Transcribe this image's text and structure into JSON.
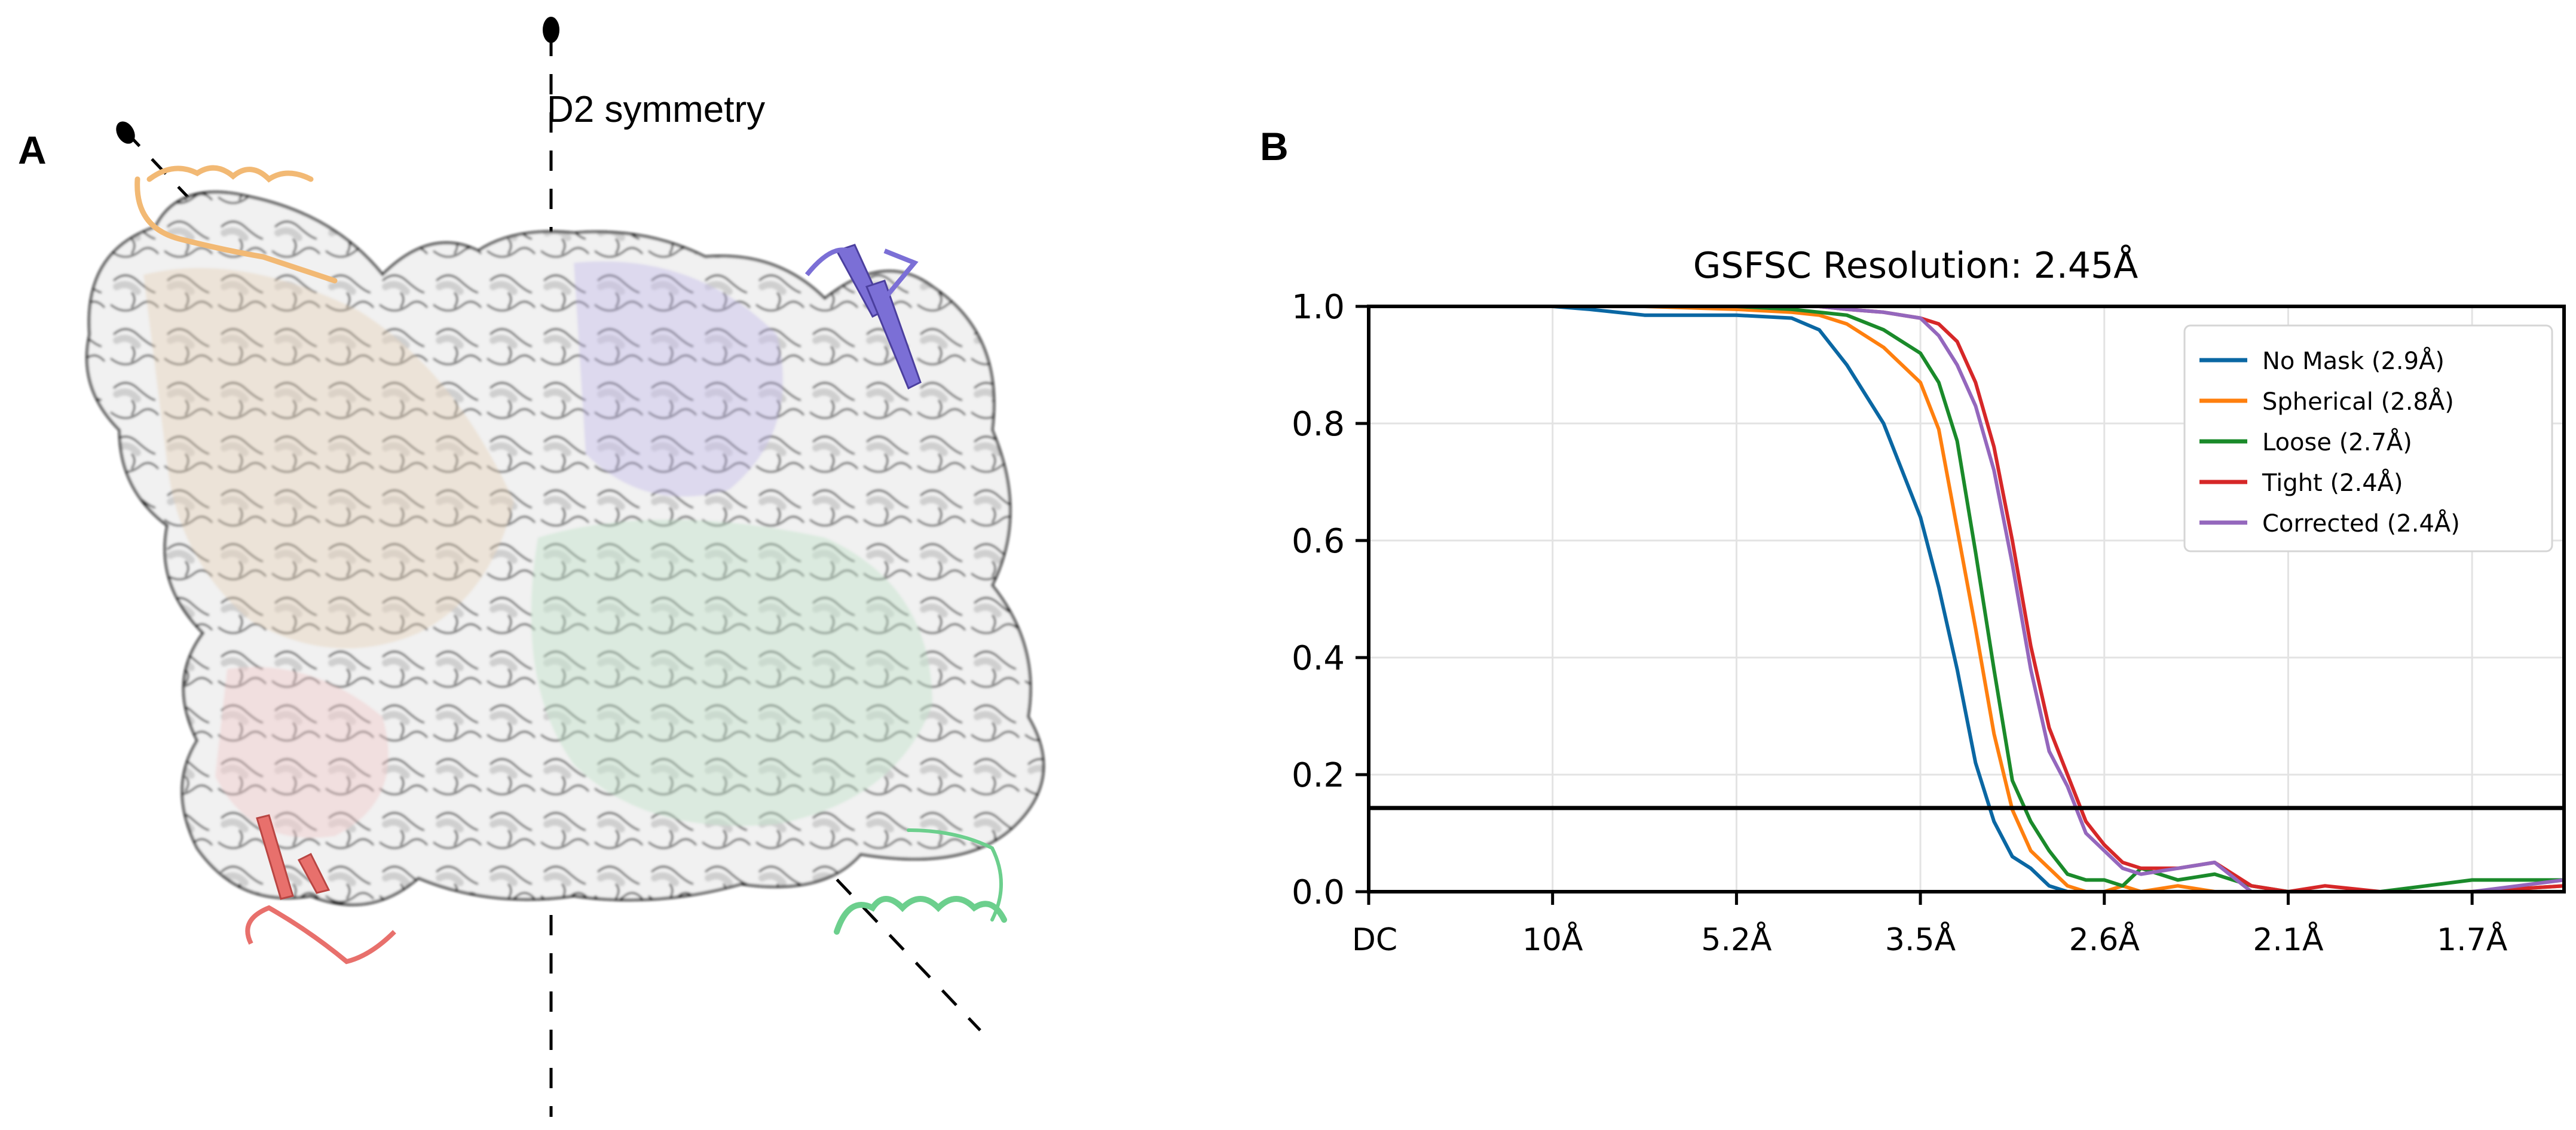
{
  "figure": {
    "panel_a": {
      "label": "A",
      "symmetry_label": "D2 symmetry",
      "description": "Cryo-EM density map with fitted ribbon model, four protomers colored orange, purple, red, green",
      "protomer_colors": {
        "orange": "#f2b974",
        "purple": "#7b6fd6",
        "red": "#e8706c",
        "green": "#6ccf8d"
      },
      "map_color": "#e6e6e6"
    },
    "panel_b": {
      "label": "B"
    }
  },
  "chart_data": {
    "type": "line",
    "title": "GSFSC Resolution: 2.45Å",
    "xlabel": "",
    "ylabel": "",
    "ylim": [
      0.0,
      1.0
    ],
    "yticks": [
      "0.0",
      "0.2",
      "0.4",
      "0.6",
      "0.8",
      "1.0"
    ],
    "xtick_labels": [
      "DC",
      "10Å",
      "5.2Å",
      "3.5Å",
      "2.6Å",
      "2.1Å",
      "1.7Å"
    ],
    "x_units": "tick index (0 = DC, spacing ≈ 0.096 1/Å)",
    "xlim": [
      0,
      6.5
    ],
    "grid": true,
    "threshold_line": 0.143,
    "legend_position": "upper right",
    "x": [
      0.0,
      0.5,
      1.0,
      1.2,
      1.5,
      2.0,
      2.3,
      2.45,
      2.6,
      2.8,
      3.0,
      3.1,
      3.2,
      3.3,
      3.4,
      3.5,
      3.6,
      3.7,
      3.8,
      3.9,
      4.0,
      4.1,
      4.2,
      4.4,
      4.6,
      4.8,
      5.0,
      5.2,
      5.5,
      6.0,
      6.5
    ],
    "series": [
      {
        "name": "No Mask (2.9Å)",
        "color": "#0a67a3",
        "values": [
          1.0,
          1.0,
          1.0,
          0.995,
          0.985,
          0.985,
          0.98,
          0.96,
          0.9,
          0.8,
          0.64,
          0.52,
          0.38,
          0.22,
          0.12,
          0.06,
          0.04,
          0.01,
          0.0,
          0.0,
          0.0,
          0.0,
          0.0,
          0.0,
          0.0,
          0.0,
          0.0,
          0.0,
          0.0,
          0.0,
          0.0
        ]
      },
      {
        "name": "Spherical (2.8Å)",
        "color": "#ff7f0e",
        "values": [
          1.0,
          1.0,
          1.0,
          1.0,
          1.0,
          0.995,
          0.99,
          0.985,
          0.97,
          0.93,
          0.87,
          0.79,
          0.62,
          0.45,
          0.27,
          0.14,
          0.07,
          0.04,
          0.01,
          0.0,
          0.0,
          0.01,
          0.0,
          0.01,
          0.0,
          0.0,
          0.0,
          0.0,
          0.0,
          0.0,
          0.01
        ]
      },
      {
        "name": "Loose (2.7Å)",
        "color": "#1a8a2a",
        "values": [
          1.0,
          1.0,
          1.0,
          1.0,
          1.0,
          1.0,
          0.995,
          0.99,
          0.985,
          0.96,
          0.92,
          0.87,
          0.77,
          0.58,
          0.38,
          0.19,
          0.12,
          0.07,
          0.03,
          0.02,
          0.02,
          0.01,
          0.04,
          0.02,
          0.03,
          0.01,
          0.0,
          0.0,
          0.0,
          0.02,
          0.02
        ]
      },
      {
        "name": "Tight (2.4Å)",
        "color": "#d62728",
        "values": [
          1.0,
          1.0,
          1.0,
          1.0,
          1.0,
          1.0,
          1.0,
          1.0,
          0.995,
          0.99,
          0.98,
          0.97,
          0.94,
          0.87,
          0.76,
          0.6,
          0.42,
          0.28,
          0.2,
          0.12,
          0.08,
          0.05,
          0.04,
          0.04,
          0.05,
          0.01,
          0.0,
          0.01,
          0.0,
          0.0,
          0.01
        ]
      },
      {
        "name": "Corrected (2.4Å)",
        "color": "#9467bd",
        "values": [
          1.0,
          1.0,
          1.0,
          1.0,
          1.0,
          1.0,
          1.0,
          1.0,
          0.995,
          0.99,
          0.98,
          0.95,
          0.9,
          0.83,
          0.72,
          0.56,
          0.38,
          0.24,
          0.18,
          0.1,
          0.07,
          0.04,
          0.03,
          0.04,
          0.05,
          0.0,
          0.0,
          0.0,
          0.0,
          0.0,
          0.02
        ]
      }
    ]
  }
}
